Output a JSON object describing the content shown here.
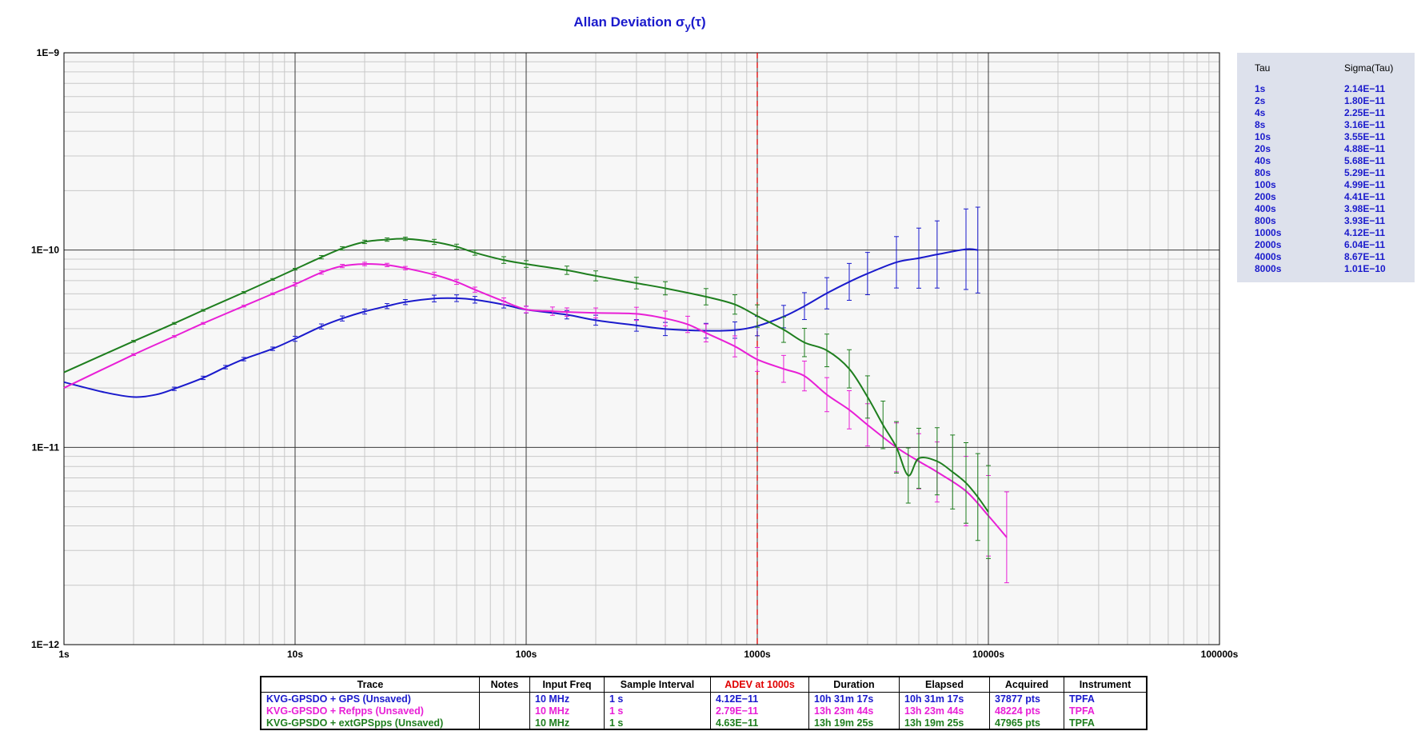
{
  "title": "Allan Deviation σ",
  "title_sub": "y",
  "title_suffix": "(τ)",
  "colors": {
    "blue": "#1a1acc",
    "magenta": "#e81fd6",
    "green": "#1e7e1e",
    "red": "#e00000",
    "grid_major": "#3a3a3a",
    "grid_minor": "#c8c8c8",
    "plot_bg": "#f7f7f7"
  },
  "tau_panel": {
    "headers": {
      "tau": "Tau",
      "sigma": "Sigma(Tau)"
    },
    "rows": [
      {
        "tau": "1s",
        "sigma": "2.14E−11"
      },
      {
        "tau": "2s",
        "sigma": "1.80E−11"
      },
      {
        "tau": "4s",
        "sigma": "2.25E−11"
      },
      {
        "tau": "8s",
        "sigma": "3.16E−11"
      },
      {
        "tau": "10s",
        "sigma": "3.55E−11"
      },
      {
        "tau": "20s",
        "sigma": "4.88E−11"
      },
      {
        "tau": "40s",
        "sigma": "5.68E−11"
      },
      {
        "tau": "80s",
        "sigma": "5.29E−11"
      },
      {
        "tau": "100s",
        "sigma": "4.99E−11"
      },
      {
        "tau": "200s",
        "sigma": "4.41E−11"
      },
      {
        "tau": "400s",
        "sigma": "3.98E−11"
      },
      {
        "tau": "800s",
        "sigma": "3.93E−11"
      },
      {
        "tau": "1000s",
        "sigma": "4.12E−11"
      },
      {
        "tau": "2000s",
        "sigma": "6.04E−11"
      },
      {
        "tau": "4000s",
        "sigma": "8.67E−11"
      },
      {
        "tau": "8000s",
        "sigma": "1.01E−10"
      }
    ]
  },
  "summary_table": {
    "headers": {
      "trace": "Trace",
      "notes": "Notes",
      "input_freq": "Input Freq",
      "sample_interval": "Sample Interval",
      "adev": "ADEV at 1000s",
      "duration": "Duration",
      "elapsed": "Elapsed",
      "acquired": "Acquired",
      "instrument": "Instrument"
    },
    "rows": [
      {
        "trace": "KVG-GPSDO + GPS (Unsaved)",
        "notes": "",
        "input_freq": "10 MHz",
        "sample_interval": "1 s",
        "adev": "4.12E−11",
        "duration": "10h 31m 17s",
        "elapsed": "10h 31m 17s",
        "acquired": "37877 pts",
        "instrument": "TPFA",
        "color": "#1a1acc"
      },
      {
        "trace": "KVG-GPSDO + Refpps (Unsaved)",
        "notes": "",
        "input_freq": "10 MHz",
        "sample_interval": "1 s",
        "adev": "2.79E−11",
        "duration": "13h 23m 44s",
        "elapsed": "13h 23m 44s",
        "acquired": "48224 pts",
        "instrument": "TPFA",
        "color": "#e81fd6"
      },
      {
        "trace": "KVG-GPSDO + extGPSpps (Unsaved)",
        "notes": "",
        "input_freq": "10 MHz",
        "sample_interval": "1 s",
        "adev": "4.63E−11",
        "duration": "13h 19m 25s",
        "elapsed": "13h 19m 25s",
        "acquired": "47965 pts",
        "instrument": "TPFA",
        "color": "#1e7e1e"
      }
    ]
  },
  "chart_data": {
    "type": "line",
    "title": "Allan Deviation σy(τ)",
    "xlabel": "",
    "ylabel": "",
    "x_scale": "log",
    "y_scale": "log",
    "xlim": [
      1,
      100000
    ],
    "ylim": [
      1e-12,
      1e-09
    ],
    "x_tick_labels": [
      "1s",
      "10s",
      "100s",
      "1000s",
      "10000s",
      "100000s"
    ],
    "x_tick_values": [
      1,
      10,
      100,
      1000,
      10000,
      100000
    ],
    "y_tick_labels": [
      "1E−12",
      "1E−11",
      "1E−10",
      "1E−9"
    ],
    "y_tick_values": [
      1e-12,
      1e-11,
      1e-10,
      1e-09
    ],
    "grid": true,
    "marker_line": {
      "x": 1000,
      "color": "#e00000",
      "style": "dashed"
    },
    "series": [
      {
        "name": "KVG-GPSDO + GPS (Unsaved)",
        "color": "#1a1acc",
        "x": [
          1,
          1.5,
          2,
          2.5,
          3,
          4,
          5,
          6,
          8,
          10,
          13,
          16,
          20,
          25,
          30,
          40,
          50,
          60,
          80,
          100,
          150,
          200,
          300,
          400,
          600,
          800,
          1000,
          1300,
          1600,
          2000,
          2500,
          3000,
          4000,
          5000,
          6000,
          8000,
          9000
        ],
        "y": [
          2.14e-11,
          1.9e-11,
          1.8e-11,
          1.85e-11,
          1.98e-11,
          2.25e-11,
          2.55e-11,
          2.8e-11,
          3.16e-11,
          3.55e-11,
          4.1e-11,
          4.5e-11,
          4.88e-11,
          5.2e-11,
          5.45e-11,
          5.68e-11,
          5.7e-11,
          5.6e-11,
          5.29e-11,
          4.99e-11,
          4.7e-11,
          4.41e-11,
          4.15e-11,
          3.98e-11,
          3.9e-11,
          3.93e-11,
          4.12e-11,
          4.6e-11,
          5.2e-11,
          6.04e-11,
          6.9e-11,
          7.6e-11,
          8.67e-11,
          9.1e-11,
          9.5e-11,
          1.01e-10,
          1e-10
        ],
        "err_pct": [
          0,
          0,
          0,
          0,
          0.02,
          0.02,
          0.02,
          0.02,
          0.02,
          0.03,
          0.03,
          0.03,
          0.03,
          0.03,
          0.03,
          0.04,
          0.04,
          0.04,
          0.04,
          0.04,
          0.05,
          0.06,
          0.07,
          0.08,
          0.09,
          0.1,
          0.12,
          0.14,
          0.17,
          0.2,
          0.24,
          0.28,
          0.35,
          0.42,
          0.48,
          0.6,
          0.65
        ]
      },
      {
        "name": "KVG-GPSDO + Refpps (Unsaved)",
        "color": "#e81fd6",
        "x": [
          1,
          2,
          3,
          4,
          6,
          8,
          10,
          13,
          16,
          20,
          25,
          30,
          40,
          50,
          60,
          80,
          100,
          130,
          150,
          200,
          300,
          400,
          500,
          600,
          800,
          1000,
          1300,
          1600,
          2000,
          2500,
          3000,
          4000,
          5000,
          6000,
          8000,
          10000,
          12000
        ],
        "y": [
          2e-11,
          2.95e-11,
          3.65e-11,
          4.25e-11,
          5.2e-11,
          6e-11,
          6.7e-11,
          7.7e-11,
          8.3e-11,
          8.5e-11,
          8.4e-11,
          8.1e-11,
          7.5e-11,
          6.9e-11,
          6.3e-11,
          5.5e-11,
          5e-11,
          4.9e-11,
          4.85e-11,
          4.8e-11,
          4.75e-11,
          4.5e-11,
          4.2e-11,
          3.8e-11,
          3.25e-11,
          2.79e-11,
          2.5e-11,
          2.3e-11,
          1.85e-11,
          1.55e-11,
          1.3e-11,
          1e-11,
          8.5e-12,
          7.5e-12,
          6e-12,
          4.5e-12,
          3.5e-12
        ],
        "err_pct": [
          0,
          0.01,
          0.01,
          0.01,
          0.01,
          0.01,
          0.02,
          0.02,
          0.02,
          0.02,
          0.02,
          0.02,
          0.03,
          0.03,
          0.03,
          0.04,
          0.04,
          0.05,
          0.05,
          0.06,
          0.08,
          0.09,
          0.1,
          0.11,
          0.13,
          0.15,
          0.17,
          0.19,
          0.22,
          0.25,
          0.28,
          0.33,
          0.38,
          0.42,
          0.5,
          0.6,
          0.7
        ]
      },
      {
        "name": "KVG-GPSDO + extGPSpps (Unsaved)",
        "color": "#1e7e1e",
        "x": [
          1,
          2,
          3,
          4,
          6,
          8,
          10,
          13,
          16,
          20,
          25,
          30,
          40,
          50,
          60,
          80,
          100,
          150,
          200,
          300,
          400,
          600,
          800,
          1000,
          1300,
          1600,
          2000,
          2500,
          3000,
          3500,
          4000,
          4500,
          5000,
          6000,
          7000,
          8000,
          9000,
          10000
        ],
        "y": [
          2.4e-11,
          3.45e-11,
          4.25e-11,
          4.95e-11,
          6.1e-11,
          7.1e-11,
          8e-11,
          9.2e-11,
          1.02e-10,
          1.1e-10,
          1.13e-10,
          1.14e-10,
          1.1e-10,
          1.04e-10,
          9.7e-11,
          8.9e-11,
          8.5e-11,
          7.9e-11,
          7.4e-11,
          6.8e-11,
          6.4e-11,
          5.8e-11,
          5.3e-11,
          4.63e-11,
          3.95e-11,
          3.4e-11,
          3.1e-11,
          2.5e-11,
          1.8e-11,
          1.3e-11,
          1e-11,
          7.2e-12,
          8.8e-12,
          8.5e-12,
          7.5e-12,
          6.6e-12,
          5.6e-12,
          4.7e-12
        ],
        "err_pct": [
          0,
          0.01,
          0.01,
          0.01,
          0.01,
          0.01,
          0.01,
          0.02,
          0.02,
          0.02,
          0.02,
          0.02,
          0.03,
          0.03,
          0.03,
          0.04,
          0.04,
          0.05,
          0.06,
          0.07,
          0.08,
          0.1,
          0.12,
          0.14,
          0.16,
          0.18,
          0.21,
          0.25,
          0.28,
          0.32,
          0.35,
          0.38,
          0.42,
          0.48,
          0.54,
          0.6,
          0.66,
          0.72
        ]
      }
    ]
  }
}
